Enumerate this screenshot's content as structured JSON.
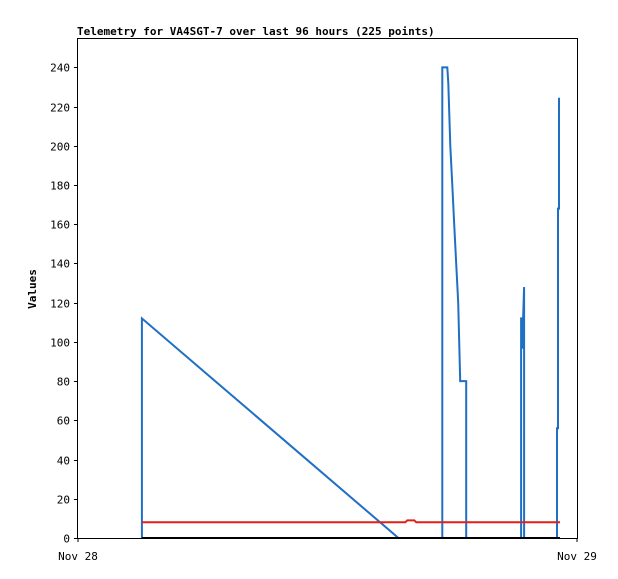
{
  "chart_data": {
    "type": "line",
    "title": "Telemetry for VA4SGT-7 over last 96 hours (225 points)",
    "ylabel": "Values",
    "xlabel": "",
    "x_tick_labels": [
      "Nov 28",
      "Nov 29"
    ],
    "xlim": [
      0,
      1
    ],
    "ylim": [
      0,
      255
    ],
    "y_ticks": [
      0,
      20,
      40,
      60,
      80,
      100,
      120,
      140,
      160,
      180,
      200,
      220,
      240
    ],
    "grid": false,
    "series": [
      {
        "color": "#1f6fc4",
        "points": [
          [
            0.128,
            0
          ],
          [
            0.128,
            112
          ],
          [
            0.642,
            0
          ],
          [
            0.73,
            0
          ],
          [
            0.73,
            240
          ],
          [
            0.74,
            240
          ],
          [
            0.742,
            232
          ],
          [
            0.746,
            200
          ],
          [
            0.75,
            180
          ],
          [
            0.754,
            160
          ],
          [
            0.758,
            140
          ],
          [
            0.762,
            120
          ],
          [
            0.764,
            100
          ],
          [
            0.766,
            80
          ],
          [
            0.778,
            80
          ],
          [
            0.778,
            0
          ],
          [
            0.888,
            0
          ],
          [
            0.888,
            112
          ],
          [
            0.89,
            112
          ],
          [
            0.89,
            97
          ],
          [
            0.892,
            97
          ],
          [
            0.892,
            112
          ],
          [
            0.894,
            128
          ],
          [
            0.894,
            0
          ],
          [
            0.96,
            0
          ],
          [
            0.96,
            56
          ],
          [
            0.962,
            56
          ],
          [
            0.962,
            168
          ],
          [
            0.964,
            168
          ],
          [
            0.964,
            224
          ],
          [
            0.966,
            224
          ]
        ]
      },
      {
        "color": "#e0201a",
        "points": [
          [
            0.128,
            8
          ],
          [
            0.656,
            8
          ],
          [
            0.66,
            9
          ],
          [
            0.674,
            9
          ],
          [
            0.678,
            8
          ],
          [
            0.966,
            8
          ]
        ]
      },
      {
        "color": "#000000",
        "points": [
          [
            0.128,
            0
          ],
          [
            0.966,
            0
          ]
        ]
      }
    ]
  }
}
